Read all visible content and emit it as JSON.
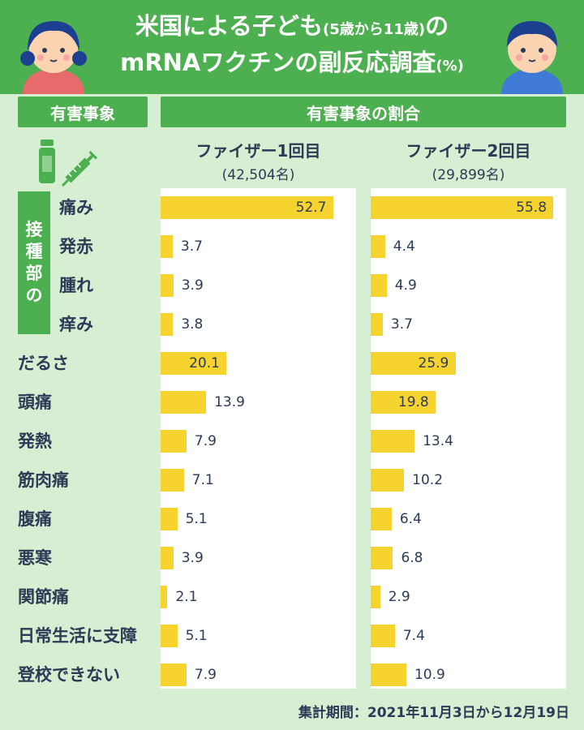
{
  "title": {
    "line1_main": "米国による子ども",
    "line1_paren": "(5歳から11歳)",
    "line1_end": "の",
    "line2_main": "mRNAワクチンの副反応調査",
    "line2_unit": "(%)"
  },
  "header_left": "有害事象",
  "header_right": "有害事象の割合",
  "group_label": [
    "接",
    "種",
    "部",
    "の"
  ],
  "icons": {
    "vial": "vial-icon",
    "syringe": "syringe-icon"
  },
  "colors": {
    "green": "#4caf50",
    "bar": "#f7d330",
    "text": "#2d3a55",
    "bg": "#d6efd2"
  },
  "footnote": "集計期間：2021年11月3日から12月19日",
  "chart_data": {
    "type": "bar",
    "orientation": "horizontal",
    "categories": [
      "痛み",
      "発赤",
      "腫れ",
      "痒み",
      "だるさ",
      "頭痛",
      "発熱",
      "筋肉痛",
      "腹痛",
      "悪寒",
      "関節痛",
      "日常生活に支障",
      "登校できない"
    ],
    "series": [
      {
        "name": "ファイザー1回目",
        "count": "(42,504名)",
        "values": [
          52.7,
          3.7,
          3.9,
          3.8,
          20.1,
          13.9,
          7.9,
          7.1,
          5.1,
          3.9,
          2.1,
          5.1,
          7.9
        ]
      },
      {
        "name": "ファイザー2回目",
        "count": "(29,899名)",
        "values": [
          55.8,
          4.4,
          4.9,
          3.7,
          25.9,
          19.8,
          13.4,
          10.2,
          6.4,
          6.8,
          2.9,
          7.4,
          10.9
        ]
      }
    ],
    "xlim": [
      0,
      60
    ],
    "ylabel": "有害事象",
    "xlabel": "有害事象の割合"
  }
}
